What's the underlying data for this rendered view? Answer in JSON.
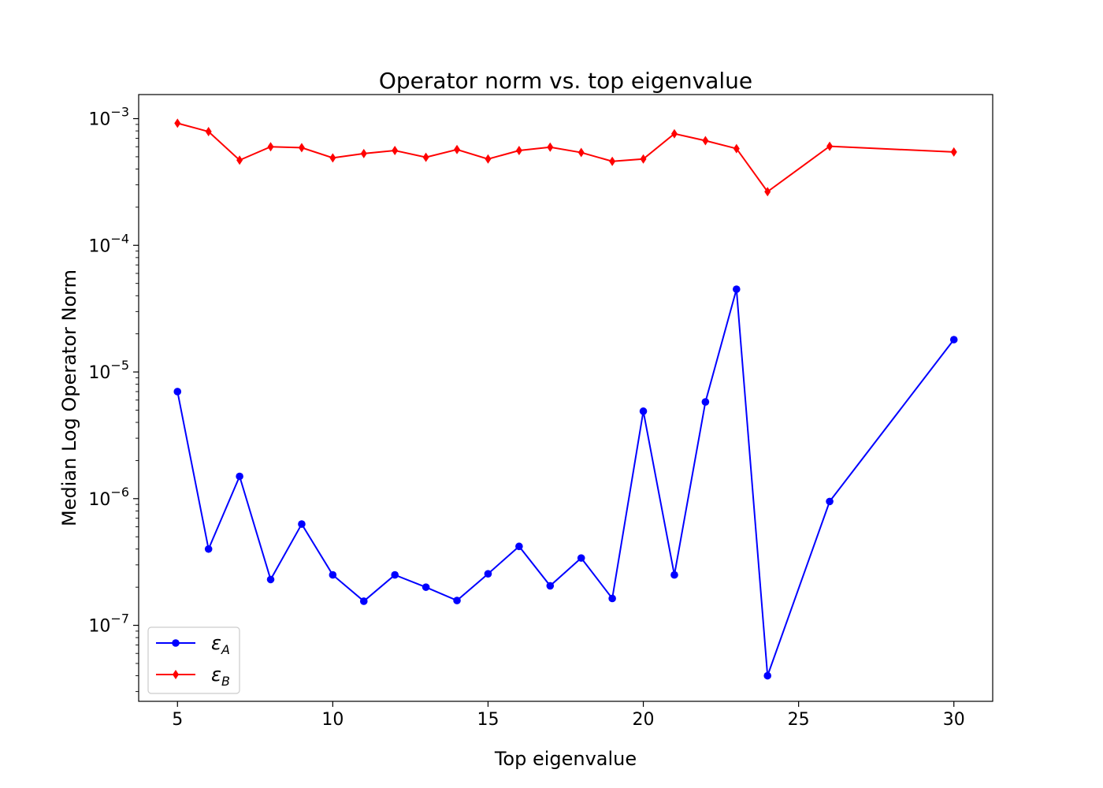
{
  "chart_data": {
    "type": "line",
    "title": "Operator norm vs. top eigenvalue",
    "xlabel": "Top eigenvalue",
    "ylabel": "Median Log Operator Norm",
    "yscale": "log",
    "xlim": [
      3.75,
      31.25
    ],
    "ylim_log10": [
      -7.6,
      -2.81
    ],
    "x_ticks": [
      {
        "value": 5,
        "label": "5"
      },
      {
        "value": 10,
        "label": "10"
      },
      {
        "value": 15,
        "label": "15"
      },
      {
        "value": 20,
        "label": "20"
      },
      {
        "value": 25,
        "label": "25"
      },
      {
        "value": 30,
        "label": "30"
      }
    ],
    "y_ticks": [
      {
        "exponent": -3,
        "base": "10",
        "exp_label": "−3"
      },
      {
        "exponent": -4,
        "base": "10",
        "exp_label": "−4"
      },
      {
        "exponent": -5,
        "base": "10",
        "exp_label": "−5"
      },
      {
        "exponent": -6,
        "base": "10",
        "exp_label": "−6"
      },
      {
        "exponent": -7,
        "base": "10",
        "exp_label": "−7"
      }
    ],
    "legend_position": "lower-left",
    "series": [
      {
        "name": "ε_A",
        "legend_symbol": "ε",
        "legend_subscript": "A",
        "color": "#0000ff",
        "marker": "circle",
        "x": [
          5,
          6,
          7,
          8,
          9,
          10,
          11,
          12,
          13,
          14,
          15,
          16,
          17,
          18,
          19,
          20,
          21,
          22,
          23,
          24,
          26,
          30
        ],
        "y": [
          7e-06,
          4e-07,
          1.5e-06,
          2.3e-07,
          6.3e-07,
          2.5e-07,
          1.55e-07,
          2.5e-07,
          2e-07,
          1.57e-07,
          2.55e-07,
          4.2e-07,
          2.05e-07,
          3.4e-07,
          1.63e-07,
          4.9e-06,
          2.5e-07,
          5.8e-06,
          4.5e-05,
          4e-08,
          9.5e-07,
          1.8e-05
        ]
      },
      {
        "name": "ε_B",
        "legend_symbol": "ε",
        "legend_subscript": "B",
        "color": "#ff0000",
        "marker": "diamond",
        "x": [
          5,
          6,
          7,
          8,
          9,
          10,
          11,
          12,
          13,
          14,
          15,
          16,
          17,
          18,
          19,
          20,
          21,
          22,
          23,
          24,
          26,
          30
        ],
        "y": [
          0.00092,
          0.00079,
          0.00047,
          0.0006,
          0.00059,
          0.00049,
          0.00053,
          0.00056,
          0.000495,
          0.00057,
          0.00048,
          0.00056,
          0.000595,
          0.00054,
          0.00046,
          0.00048,
          0.00076,
          0.00067,
          0.00058,
          0.000265,
          0.000605,
          0.000545
        ]
      }
    ]
  }
}
